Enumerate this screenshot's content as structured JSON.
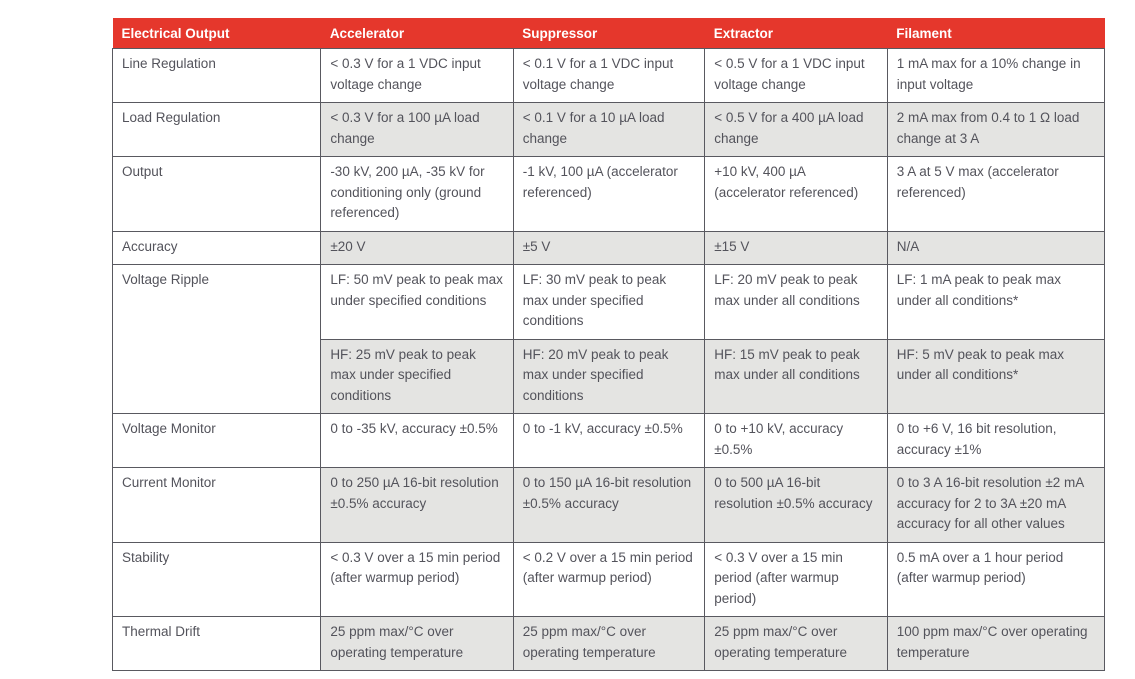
{
  "colors": {
    "header_bg": "#e5372c",
    "header_text": "#ffffff",
    "row_shade": "#e4e4e2",
    "border": "#595960",
    "body_text": "#53535b"
  },
  "table": {
    "columns": [
      "Electrical Output",
      "Accelerator",
      "Suppressor",
      "Extractor",
      "Filament"
    ],
    "column_widths_pct": [
      21.0,
      19.4,
      19.3,
      18.4,
      21.9
    ],
    "rows": [
      {
        "label": "Line Regulation",
        "rowspan": 1,
        "shaded": false,
        "cells": [
          "< 0.3 V for a 1 VDC input voltage change",
          "< 0.1 V for a 1 VDC input voltage change",
          "< 0.5 V for a 1 VDC input voltage change",
          "1 mA max for a 10% change in input voltage"
        ]
      },
      {
        "label": "Load Regulation",
        "rowspan": 1,
        "shaded": true,
        "cells": [
          "< 0.3 V for a 100 µA load change",
          "< 0.1 V for a 10 µA load change",
          "< 0.5 V for a 400 µA load change",
          "2 mA max from 0.4 to 1 Ω load change at 3 A"
        ]
      },
      {
        "label": "Output",
        "rowspan": 1,
        "shaded": false,
        "cells": [
          "-30 kV, 200 µA, -35 kV for conditioning only (ground referenced)",
          "-1 kV, 100 µA (accelerator referenced)",
          "+10 kV, 400 µA (accelerator referenced)",
          "3 A at 5 V max (accelerator referenced)"
        ]
      },
      {
        "label": "Accuracy",
        "rowspan": 1,
        "shaded": true,
        "cells": [
          "±20 V",
          "±5 V",
          "±15 V",
          "N/A"
        ]
      },
      {
        "label": "Voltage Ripple",
        "rowspan": 2,
        "shaded": false,
        "cells": [
          "LF: 50 mV peak to peak max under specified conditions",
          "LF: 30 mV peak to peak max under specified conditions",
          "LF: 20 mV peak to peak max under all conditions",
          "LF: 1 mA peak to peak max under all conditions*"
        ]
      },
      {
        "label": null,
        "rowspan": 0,
        "shaded": true,
        "cells": [
          "HF: 25 mV peak to peak max under specified conditions",
          "HF: 20 mV peak to peak max under specified conditions",
          "HF: 15 mV peak to peak max under all conditions",
          "HF: 5 mV peak to peak max under all conditions*"
        ]
      },
      {
        "label": "Voltage Monitor",
        "rowspan": 1,
        "shaded": false,
        "cells": [
          "0 to -35 kV, accuracy ±0.5%",
          "0 to -1 kV, accuracy ±0.5%",
          "0 to +10 kV, accuracy ±0.5%",
          "0 to +6 V, 16 bit resolution, accuracy ±1%"
        ]
      },
      {
        "label": "Current Monitor",
        "rowspan": 1,
        "shaded": true,
        "cells": [
          "0 to 250 µA 16-bit resolution ±0.5% accuracy",
          "0 to 150 µA 16-bit resolution ±0.5% accuracy",
          "0 to 500 µA 16-bit resolution ±0.5% accuracy",
          "0 to 3 A 16-bit resolution ±2 mA accuracy for 2 to 3A ±20 mA accuracy for all other values"
        ]
      },
      {
        "label": "Stability",
        "rowspan": 1,
        "shaded": false,
        "cells": [
          "< 0.3 V over a 15 min period (after warmup period)",
          "< 0.2 V over a 15 min period (after warmup period)",
          "< 0.3 V over a 15 min period (after warmup period)",
          "0.5 mA over a 1 hour period (after warmup period)"
        ]
      },
      {
        "label": "Thermal Drift",
        "rowspan": 1,
        "shaded": true,
        "cells": [
          "25 ppm max/°C over operating temperature",
          "25 ppm max/°C over operating temperature",
          "25 ppm max/°C over operating temperature",
          "100 ppm max/°C over operating temperature"
        ]
      }
    ]
  }
}
